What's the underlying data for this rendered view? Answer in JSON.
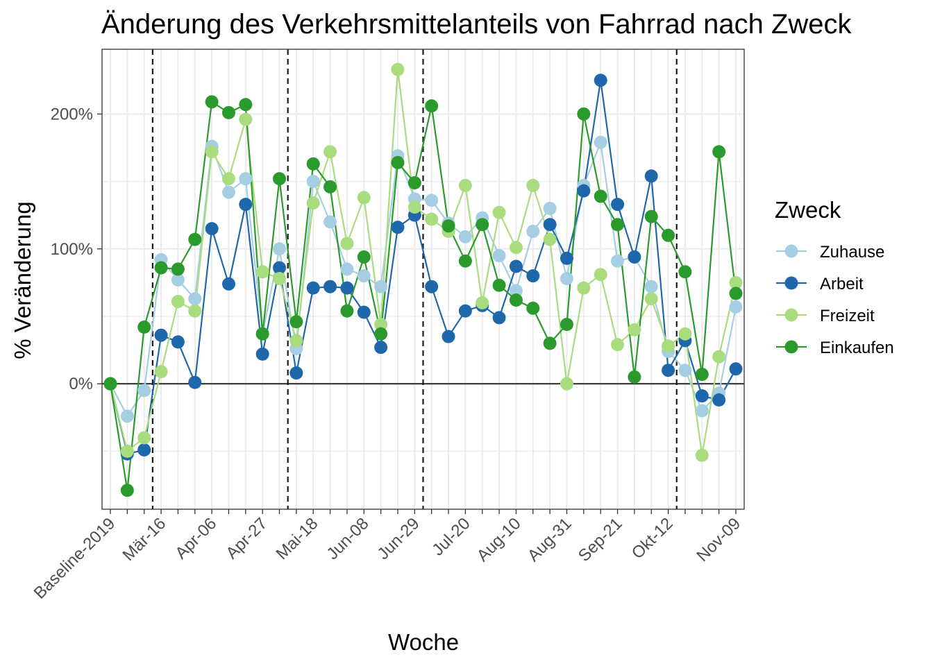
{
  "chart_data": {
    "type": "line",
    "title": "Änderung des Verkehrsmittelanteils von Fahrrad nach Zweck",
    "xlabel": "Woche",
    "ylabel": "% Veränderung",
    "x_tick_labels": [
      "Baseline-2019",
      "Mär-16",
      "Apr-06",
      "Apr-27",
      "Mai-18",
      "Jun-08",
      "Jun-29",
      "Jul-20",
      "Aug-10",
      "Aug-31",
      "Sep-21",
      "Okt-12",
      "Nov-09"
    ],
    "x_tick_positions": [
      0,
      3,
      6,
      9,
      12,
      15,
      18,
      21,
      24,
      27,
      30,
      33,
      37
    ],
    "x_count": 38,
    "ylim": [
      -93,
      248
    ],
    "y_ticks": [
      0,
      100,
      200
    ],
    "y_tick_labels": [
      "0%",
      "100%",
      "200%"
    ],
    "vlines": [
      2.5,
      10.5,
      18.5,
      33.5
    ],
    "hline": 0,
    "grid": true,
    "legend": {
      "title": "Zweck",
      "position": "right"
    },
    "series": [
      {
        "name": "Zuhause",
        "color": "#a6cee3",
        "values": [
          0,
          -24,
          -5,
          92,
          77,
          63,
          176,
          142,
          152,
          37,
          100,
          26,
          150,
          120,
          85,
          80,
          72,
          169,
          137,
          136,
          119,
          109,
          123,
          95,
          69,
          113,
          130,
          78,
          147,
          179,
          91,
          94,
          72,
          24,
          10,
          -20,
          -7,
          57
        ]
      },
      {
        "name": "Arbeit",
        "color": "#1f67ab",
        "values": [
          0,
          -52,
          -49,
          36,
          31,
          1,
          115,
          74,
          133,
          22,
          86,
          8,
          71,
          72,
          71,
          53,
          27,
          116,
          125,
          72,
          35,
          54,
          58,
          49,
          87,
          80,
          118,
          93,
          143,
          225,
          133,
          94,
          154,
          10,
          32,
          -9,
          -12,
          11
        ]
      },
      {
        "name": "Freizeit",
        "color": "#a9dc7f",
        "values": [
          0,
          -50,
          -40,
          9,
          61,
          54,
          172,
          152,
          196,
          83,
          78,
          32,
          134,
          172,
          104,
          138,
          44,
          233,
          131,
          122,
          113,
          147,
          60,
          127,
          101,
          147,
          107,
          0,
          71,
          81,
          29,
          40,
          63,
          28,
          37,
          -53,
          20,
          75
        ]
      },
      {
        "name": "Einkaufen",
        "color": "#2b9a2c",
        "values": [
          0,
          -79,
          42,
          86,
          85,
          107,
          209,
          201,
          207,
          37,
          152,
          46,
          163,
          146,
          54,
          94,
          37,
          164,
          149,
          206,
          117,
          91,
          118,
          73,
          62,
          56,
          30,
          44,
          200,
          139,
          118,
          5,
          124,
          110,
          83,
          7,
          172,
          67
        ]
      }
    ]
  }
}
